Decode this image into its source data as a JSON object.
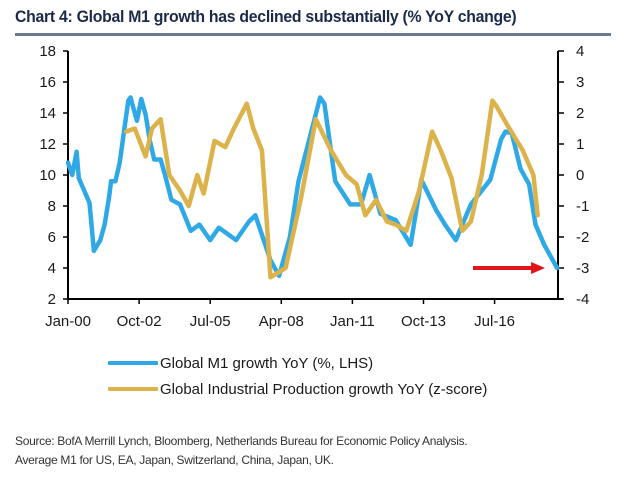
{
  "title": "Chart 4: Global M1 growth has declined substantially (% YoY change)",
  "source_lines": [
    "Source: BofA Merrill Lynch, Bloomberg, Netherlands Bureau for Economic Policy Analysis.",
    "Average M1 for US, EA, Japan, Switzerland, China, Japan, UK."
  ],
  "colors": {
    "m1": "#2fa9e6",
    "ip": "#dcb24a",
    "arrow": "#e0161b",
    "axis": "#000000",
    "title_rule": "#6b7890"
  },
  "chart_data": {
    "type": "line",
    "title": "Chart 4: Global M1 growth has declined substantially (% YoY change)",
    "x_tick_labels": [
      "Jan-00",
      "Oct-02",
      "Jul-05",
      "Apr-08",
      "Jan-11",
      "Oct-13",
      "Jul-16"
    ],
    "x_tick_months": [
      0,
      33,
      66,
      99,
      132,
      165,
      198
    ],
    "x_range_months": [
      0,
      228
    ],
    "x_unit": "months since Jan-00",
    "y_left": {
      "label": "Global M1 growth YoY (%)",
      "range": [
        2,
        18
      ],
      "ticks": [
        "2",
        "4",
        "6",
        "8",
        "10",
        "12",
        "14",
        "16",
        "18"
      ]
    },
    "y_right": {
      "label": "z-score",
      "range": [
        -4,
        4
      ],
      "ticks": [
        "-4",
        "-3",
        "-2",
        "-1",
        "0",
        "1",
        "2",
        "3",
        "4"
      ]
    },
    "grid": false,
    "legend_position": "bottom",
    "series": [
      {
        "name": "Global M1 growth YoY (%, LHS)",
        "axis": "left",
        "points": [
          [
            0,
            10.8
          ],
          [
            2,
            10.0
          ],
          [
            4,
            11.5
          ],
          [
            5,
            9.8
          ],
          [
            10,
            8.2
          ],
          [
            12,
            5.1
          ],
          [
            15,
            5.8
          ],
          [
            17,
            6.8
          ],
          [
            19,
            8.5
          ],
          [
            20,
            9.6
          ],
          [
            22,
            9.6
          ],
          [
            24,
            10.8
          ],
          [
            28,
            14.8
          ],
          [
            29,
            15.0
          ],
          [
            32,
            13.5
          ],
          [
            34,
            14.9
          ],
          [
            36,
            13.9
          ],
          [
            38,
            12.2
          ],
          [
            40,
            11.0
          ],
          [
            43,
            11.0
          ],
          [
            45,
            10.0
          ],
          [
            48,
            8.4
          ],
          [
            52,
            8.1
          ],
          [
            57,
            6.4
          ],
          [
            61,
            6.8
          ],
          [
            66,
            5.8
          ],
          [
            70,
            6.6
          ],
          [
            78,
            5.8
          ],
          [
            84,
            7.0
          ],
          [
            87,
            7.4
          ],
          [
            94,
            4.5
          ],
          [
            98,
            3.5
          ],
          [
            103,
            6.0
          ],
          [
            107,
            9.6
          ],
          [
            117,
            15.0
          ],
          [
            119,
            14.6
          ],
          [
            124,
            9.6
          ],
          [
            131,
            8.1
          ],
          [
            136,
            8.1
          ],
          [
            140,
            10.0
          ],
          [
            145,
            7.5
          ],
          [
            152,
            7.1
          ],
          [
            159,
            5.5
          ],
          [
            164,
            9.7
          ],
          [
            171,
            7.7
          ],
          [
            175,
            6.8
          ],
          [
            180,
            5.8
          ],
          [
            187,
            8.1
          ],
          [
            196,
            9.7
          ],
          [
            201,
            12.3
          ],
          [
            203,
            12.8
          ],
          [
            206,
            12.7
          ],
          [
            210,
            10.4
          ],
          [
            214,
            9.4
          ],
          [
            217,
            6.8
          ],
          [
            221,
            5.5
          ],
          [
            227,
            4.0
          ]
        ]
      },
      {
        "name": "Global Industrial Production growth YoY (z-score)",
        "axis": "right",
        "points": [
          [
            27,
            1.4
          ],
          [
            31,
            1.5
          ],
          [
            36,
            0.6
          ],
          [
            39,
            1.5
          ],
          [
            43,
            1.8
          ],
          [
            47,
            0.0
          ],
          [
            52,
            -0.5
          ],
          [
            56,
            -1.0
          ],
          [
            60,
            0.0
          ],
          [
            63,
            -0.6
          ],
          [
            68,
            1.1
          ],
          [
            73,
            0.9
          ],
          [
            77,
            1.5
          ],
          [
            83,
            2.3
          ],
          [
            86,
            1.5
          ],
          [
            90,
            0.8
          ],
          [
            94,
            -3.3
          ],
          [
            101,
            -3.0
          ],
          [
            108,
            -0.8
          ],
          [
            115,
            1.8
          ],
          [
            122,
            0.8
          ],
          [
            129,
            0.0
          ],
          [
            134,
            -0.3
          ],
          [
            138,
            -1.3
          ],
          [
            143,
            -0.8
          ],
          [
            148,
            -1.5
          ],
          [
            152,
            -1.6
          ],
          [
            157,
            -1.8
          ],
          [
            163,
            -0.5
          ],
          [
            169,
            1.4
          ],
          [
            173,
            0.8
          ],
          [
            178,
            -0.1
          ],
          [
            183,
            -1.8
          ],
          [
            187,
            -1.5
          ],
          [
            192,
            0.0
          ],
          [
            197,
            2.4
          ],
          [
            199,
            2.2
          ],
          [
            204,
            1.6
          ],
          [
            211,
            0.8
          ],
          [
            216,
            0.0
          ],
          [
            218,
            -1.3
          ]
        ]
      }
    ],
    "annotations": [
      {
        "type": "arrow",
        "text": "",
        "points_to": {
          "x_month": 227,
          "y_left": 4.0
        }
      }
    ]
  }
}
